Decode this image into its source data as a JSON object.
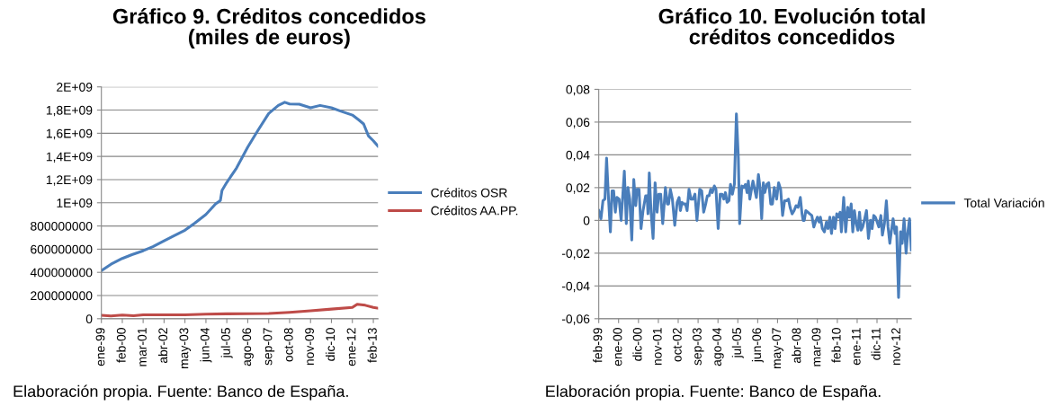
{
  "chart_data": [
    {
      "type": "line",
      "title": "Gráfico 9. Créditos concedidos\n(miles de euros)",
      "legend": "right",
      "grid": "y",
      "marker": "none",
      "line_style": "solid",
      "xlim": [
        "1999-01",
        "2013-05"
      ],
      "xticks": [
        {
          "value": "1999-01",
          "label": "ene-99"
        },
        {
          "value": "2000-02",
          "label": "feb-00"
        },
        {
          "value": "2001-03",
          "label": "mar-01"
        },
        {
          "value": "2002-04",
          "label": "abr-02"
        },
        {
          "value": "2003-05",
          "label": "may-03"
        },
        {
          "value": "2004-06",
          "label": "jun-04"
        },
        {
          "value": "2005-07",
          "label": "jul-05"
        },
        {
          "value": "2006-08",
          "label": "ago-06"
        },
        {
          "value": "2007-09",
          "label": "sep-07"
        },
        {
          "value": "2008-10",
          "label": "oct-08"
        },
        {
          "value": "2009-11",
          "label": "nov-09"
        },
        {
          "value": "2010-12",
          "label": "dic-10"
        },
        {
          "value": "2012-01",
          "label": "ene-12"
        },
        {
          "value": "2013-02",
          "label": "feb-13"
        }
      ],
      "ylim": [
        0,
        2000000000
      ],
      "yticks": [
        0,
        200000000,
        400000000,
        600000000,
        800000000,
        {
          "value": 1000000000,
          "label": "1E+09"
        },
        {
          "value": 1200000000,
          "label": "1,2E+09"
        },
        {
          "value": 1400000000,
          "label": "1,4E+09"
        },
        {
          "value": 1600000000,
          "label": "1,6E+09"
        },
        {
          "value": 1800000000,
          "label": "1,8E+09"
        },
        {
          "value": 2000000000,
          "label": "2E+09"
        }
      ],
      "series": [
        {
          "name": "Créditos OSR",
          "color": "#4a7ebb",
          "x": [
            "1999-01",
            "1999-07",
            "2000-02",
            "2000-08",
            "2001-03",
            "2001-09",
            "2002-04",
            "2002-10",
            "2003-05",
            "2003-11",
            "2004-06",
            "2004-12",
            "2005-03",
            "2005-04",
            "2005-07",
            "2006-01",
            "2006-08",
            "2007-02",
            "2007-09",
            "2008-03",
            "2008-07",
            "2008-10",
            "2009-04",
            "2009-11",
            "2010-05",
            "2010-12",
            "2011-06",
            "2012-01",
            "2012-05",
            "2012-08",
            "2012-11",
            "2013-02",
            "2013-05"
          ],
          "values": [
            415000000,
            470000000,
            520000000,
            553000000,
            586000000,
            622000000,
            672000000,
            714000000,
            763000000,
            824000000,
            899000000,
            990000000,
            1020000000,
            1107000000,
            1176000000,
            1300000000,
            1480000000,
            1618000000,
            1770000000,
            1840000000,
            1867000000,
            1853000000,
            1850000000,
            1820000000,
            1840000000,
            1820000000,
            1790000000,
            1757000000,
            1715000000,
            1680000000,
            1577000000,
            1535000000,
            1488000000
          ]
        },
        {
          "name": "Créditos AA.PP.",
          "color": "#be4b48",
          "x": [
            "1999-01",
            "1999-07",
            "2000-02",
            "2000-09",
            "2001-03",
            "2002-05",
            "2003-05",
            "2004-06",
            "2005-07",
            "2006-08",
            "2007-09",
            "2008-10",
            "2009-11",
            "2010-12",
            "2012-01",
            "2012-04",
            "2012-09",
            "2013-02",
            "2013-05"
          ],
          "values": [
            30000000,
            24000000,
            32000000,
            25000000,
            33000000,
            34000000,
            34000000,
            40000000,
            42000000,
            43000000,
            45000000,
            55000000,
            69000000,
            83000000,
            97000000,
            125000000,
            116000000,
            97000000,
            91000000
          ]
        }
      ],
      "annotations": [
        "Elaboración propia. Fuente: Banco de España."
      ]
    },
    {
      "type": "line",
      "title": "Gráfico 10. Evolución total\ncréditos concedidos",
      "legend": "right",
      "grid": "y",
      "marker": "none",
      "line_style": "solid",
      "xlim": [
        "1999-02",
        "2013-07"
      ],
      "xticks": [
        {
          "value": "1999-02",
          "label": "feb-99"
        },
        {
          "value": "2000-01",
          "label": "ene-00"
        },
        {
          "value": "2000-12",
          "label": "dic-00"
        },
        {
          "value": "2001-11",
          "label": "nov-01"
        },
        {
          "value": "2002-10",
          "label": "oct-02"
        },
        {
          "value": "2003-09",
          "label": "sep-03"
        },
        {
          "value": "2004-08",
          "label": "ago-04"
        },
        {
          "value": "2005-07",
          "label": "jul-05"
        },
        {
          "value": "2006-06",
          "label": "jun-06"
        },
        {
          "value": "2007-05",
          "label": "may-07"
        },
        {
          "value": "2008-04",
          "label": "abr-08"
        },
        {
          "value": "2009-03",
          "label": "mar-09"
        },
        {
          "value": "2010-02",
          "label": "feb-10"
        },
        {
          "value": "2011-01",
          "label": "ene-11"
        },
        {
          "value": "2011-12",
          "label": "dic-11"
        },
        {
          "value": "2012-11",
          "label": "nov-12"
        }
      ],
      "ylim": [
        -0.06,
        0.08
      ],
      "yticks": [
        {
          "value": -0.06,
          "label": "-0,06"
        },
        {
          "value": -0.04,
          "label": "-0,04"
        },
        {
          "value": -0.02,
          "label": "-0,02"
        },
        0,
        {
          "value": 0.02,
          "label": "0,02"
        },
        {
          "value": 0.04,
          "label": "0,04"
        },
        {
          "value": 0.06,
          "label": "0,06"
        },
        {
          "value": 0.08,
          "label": "0,08"
        }
      ],
      "series": [
        {
          "name": "Total Variación",
          "color": "#4a7ebb",
          "x": [
            "1999-02-01",
            "1999-03-10",
            "1999-04-13",
            "1999-05-16",
            "1999-06-13",
            "1999-07-16",
            "1999-08-16",
            "1999-09-13",
            "1999-10-10",
            "1999-11-07",
            "1999-12-04",
            "2000-01-10",
            "2000-02-13",
            "2000-04-07",
            "2000-05-10",
            "2000-06-07",
            "2000-07-07",
            "2000-08-10",
            "2000-09-13",
            "2000-10-16",
            "2000-11-07",
            "2000-12-10",
            "2001-01-13",
            "2001-02-16",
            "2001-04-01",
            "2001-04-25",
            "2001-05-10",
            "2001-06-01",
            "2001-07-01",
            "2001-08-04",
            "2001-09-07",
            "2001-10-10",
            "2001-11-07",
            "2001-12-10",
            "2002-01-13",
            "2002-02-28",
            "2002-04-01",
            "2002-04-22",
            "2002-05-22",
            "2002-06-25",
            "2002-08-04",
            "2002-09-13",
            "2002-10-16",
            "2002-11-07",
            "2002-12-04",
            "2003-01-01",
            "2003-02-01",
            "2003-02-28",
            "2003-04-01",
            "2003-05-04",
            "2003-06-07",
            "2003-07-10",
            "2003-08-13",
            "2003-09-28",
            "2003-11-01",
            "2003-12-04",
            "2004-01-07",
            "2004-02-04",
            "2004-03-04",
            "2004-04-01",
            "2004-04-28",
            "2004-06-01",
            "2004-06-28",
            "2004-08-04",
            "2004-09-07",
            "2004-10-10",
            "2004-11-07",
            "2004-12-04",
            "2005-01-01",
            "2005-02-01",
            "2005-02-28",
            "2005-04-01",
            "2005-05-04",
            "2005-06-07",
            "2005-07-10",
            "2005-08-01",
            "2005-09-07",
            "2005-10-10",
            "2005-11-07",
            "2005-12-04",
            "2005-12-25",
            "2006-01-19",
            "2006-02-16",
            "2006-03-13",
            "2006-04-10",
            "2006-05-10",
            "2006-06-13",
            "2006-07-10",
            "2006-08-07",
            "2006-09-04",
            "2006-09-28",
            "2006-11-01",
            "2006-12-04",
            "2007-01-07",
            "2007-02-04",
            "2007-03-07",
            "2007-04-16",
            "2007-05-19",
            "2007-06-22",
            "2007-07-25",
            "2007-08-28",
            "2007-09-28",
            "2007-11-01",
            "2007-11-28",
            "2008-01-01",
            "2008-02-04",
            "2008-03-07",
            "2008-04-10",
            "2008-05-19",
            "2008-06-16",
            "2008-07-04",
            "2008-07-25",
            "2008-08-19",
            "2008-09-22",
            "2008-10-25",
            "2008-11-28",
            "2009-01-01",
            "2009-01-28",
            "2009-03-01",
            "2009-04-01",
            "2009-04-22",
            "2009-05-25",
            "2009-06-28",
            "2009-08-01",
            "2009-08-28",
            "2009-09-28",
            "2009-10-25",
            "2009-11-28",
            "2009-12-25",
            "2010-01-22",
            "2010-02-22",
            "2010-03-19",
            "2010-04-10",
            "2010-05-19",
            "2010-06-22",
            "2010-07-25",
            "2010-08-22",
            "2010-09-22",
            "2010-10-19",
            "2010-11-16",
            "2010-12-10",
            "2011-01-13",
            "2011-02-10",
            "2011-03-07",
            "2011-04-04",
            "2011-05-07",
            "2011-06-07",
            "2011-07-10",
            "2011-08-13",
            "2011-09-10",
            "2011-10-07",
            "2011-11-04",
            "2011-12-04",
            "2012-01-01",
            "2012-02-04",
            "2012-03-01",
            "2012-04-04",
            "2012-05-07",
            "2012-06-04",
            "2012-07-04",
            "2012-08-01",
            "2012-08-28",
            "2012-10-01",
            "2012-10-25",
            "2012-11-28",
            "2013-01-01",
            "2013-01-28",
            "2013-03-01",
            "2013-04-04",
            "2013-05-01",
            "2013-06-01",
            "2013-07-01"
          ],
          "values": [
            0.006,
            0.001,
            0.012,
            0.013,
            0.038,
            0.013,
            -0.007,
            0.018,
            0.018,
            0.005,
            0.014,
            0.013,
            0.0,
            0.03,
            -0.002,
            0.02,
            0.013,
            -0.012,
            0.025,
            0.009,
            0.019,
            0.019,
            -0.005,
            0.006,
            0.015,
            0.015,
            0.004,
            0.029,
            0.005,
            -0.011,
            0.023,
            0.005,
            0.016,
            0.016,
            -0.002,
            0.02,
            0.01,
            0.01,
            0.019,
            0.013,
            -0.003,
            0.011,
            0.014,
            0.006,
            0.011,
            0.01,
            0.01,
            0.006,
            0.019,
            0.013,
            0.013,
            0.016,
            0.0,
            0.019,
            0.018,
            0.005,
            0.01,
            0.015,
            0.015,
            0.019,
            0.017,
            0.021,
            0.019,
            -0.005,
            0.016,
            0.016,
            0.013,
            0.017,
            0.011,
            0.012,
            0.022,
            0.016,
            0.022,
            0.065,
            0.038,
            -0.002,
            0.021,
            0.02,
            0.022,
            0.017,
            0.024,
            0.013,
            0.019,
            0.024,
            0.019,
            0.014,
            0.028,
            0.02,
            0.001,
            0.023,
            0.017,
            0.022,
            0.023,
            0.01,
            0.01,
            0.02,
            0.013,
            0.023,
            0.019,
            0.003,
            0.012,
            0.012,
            0.013,
            0.008,
            0.004,
            0.006,
            0.009,
            0.008,
            0.014,
            0.004,
            0.0,
            0.0,
            0.006,
            0.005,
            0.004,
            0.003,
            -0.004,
            -0.001,
            0.002,
            -0.001,
            0.002,
            -0.005,
            -0.007,
            -0.001,
            -0.005,
            0.002,
            -0.008,
            0.002,
            -0.005,
            0.004,
            0.002,
            0.005,
            -0.007,
            0.014,
            -0.007,
            0.008,
            0.002,
            0.01,
            -0.007,
            0.006,
            -0.001,
            -0.006,
            0.005,
            -0.006,
            -0.004,
            0.001,
            0.006,
            -0.011,
            0.0,
            -0.005,
            0.003,
            0.002,
            -0.001,
            -0.004,
            0.003,
            -0.009,
            -0.002,
            0.012,
            -0.004,
            -0.014,
            -0.006,
            0.001,
            -0.008,
            -0.004,
            -0.047,
            -0.007,
            -0.014,
            0.001,
            -0.02,
            -0.008,
            0.001,
            -0.018
          ]
        }
      ],
      "annotations": [
        "Elaboración propia. Fuente: Banco de España."
      ]
    }
  ]
}
